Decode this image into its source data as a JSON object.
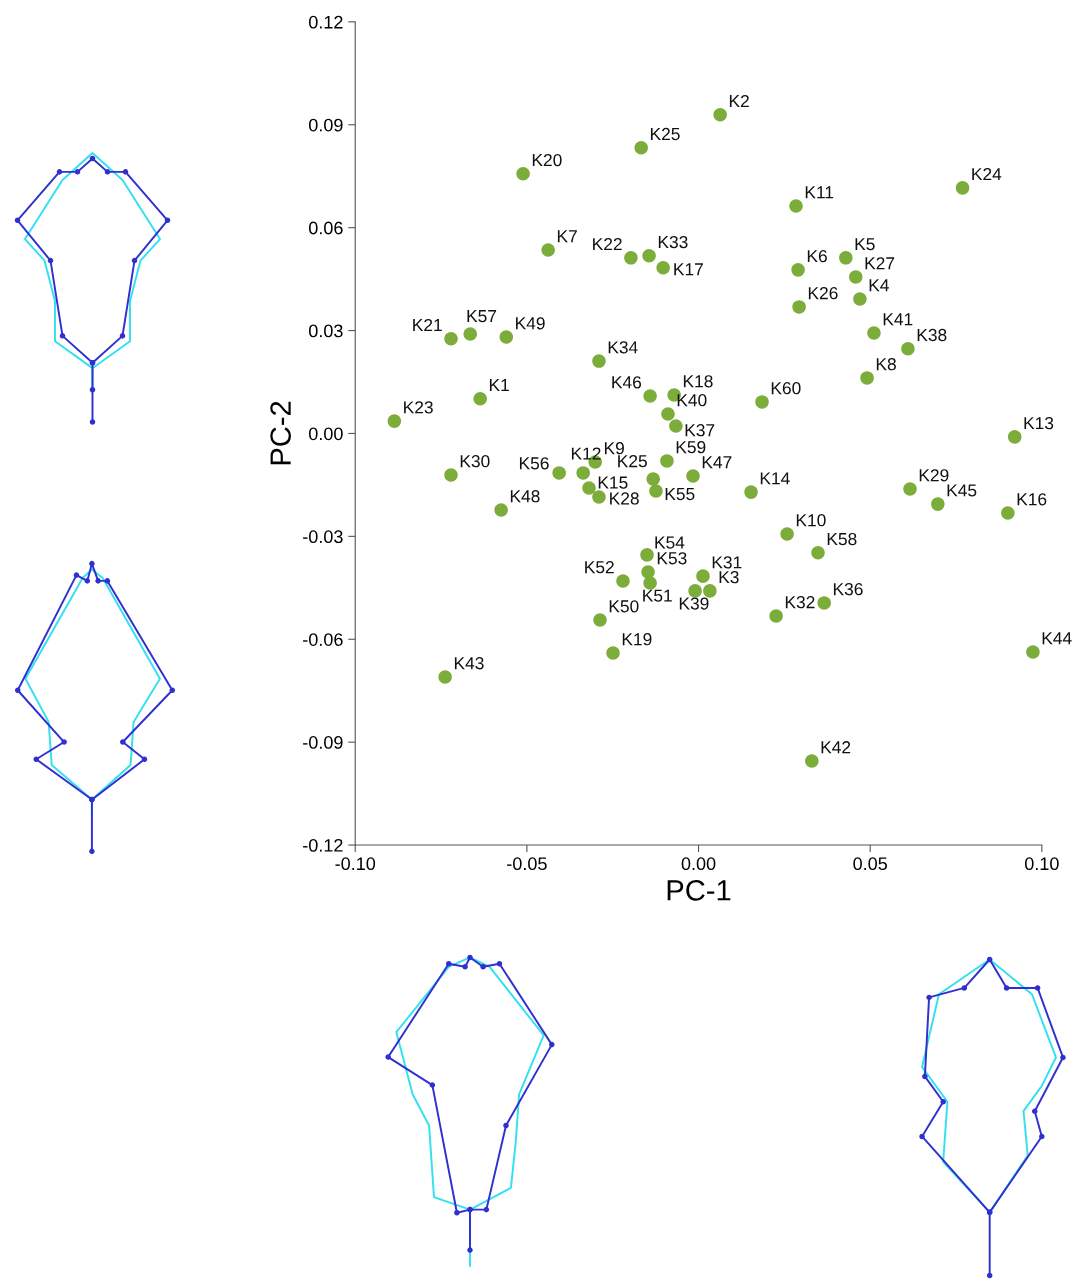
{
  "chart_data": {
    "type": "scatter",
    "xlabel": "PC-1",
    "ylabel": "PC-2",
    "xlim": [
      -0.1,
      0.1
    ],
    "xticks": [
      {
        "value": -0.1,
        "label": "-0.10"
      },
      {
        "value": -0.05,
        "label": "-0.05"
      },
      {
        "value": 0.0,
        "label": "0.00"
      },
      {
        "value": 0.05,
        "label": "0.05"
      },
      {
        "value": 0.1,
        "label": "0.10"
      }
    ],
    "ylim": [
      -0.12,
      0.12
    ],
    "yticks": [
      {
        "value": -0.12,
        "label": "-0.12"
      },
      {
        "value": -0.09,
        "label": "-0.09"
      },
      {
        "value": -0.06,
        "label": "-0.06"
      },
      {
        "value": -0.03,
        "label": "-0.03"
      },
      {
        "value": 0.0,
        "label": "0.00"
      },
      {
        "value": 0.03,
        "label": "0.03"
      },
      {
        "value": 0.06,
        "label": "0.06"
      },
      {
        "value": 0.09,
        "label": "0.09"
      },
      {
        "value": 0.12,
        "label": "0.12"
      }
    ],
    "grid": false,
    "legend": false,
    "marker": "circle",
    "series": [
      {
        "color": "#7cac3a",
        "x": [
          0.0063,
          -0.0167,
          -0.0511,
          0.0769,
          0.0284,
          -0.0438,
          -0.0197,
          -0.0144,
          -0.0103,
          0.029,
          0.0429,
          0.0458,
          0.047,
          0.0293,
          0.0511,
          0.061,
          0.0491,
          -0.0721,
          -0.0665,
          -0.056,
          -0.029,
          -0.0636,
          -0.0886,
          -0.0141,
          -0.0071,
          -0.0089,
          -0.0066,
          0.0185,
          0.0921,
          -0.0721,
          -0.0406,
          -0.0336,
          -0.0301,
          -0.0319,
          -0.029,
          -0.0132,
          -0.0124,
          -0.0092,
          -0.0016,
          0.0153,
          -0.0575,
          0.0616,
          0.0697,
          0.0901,
          0.0258,
          0.0348,
          -0.015,
          -0.0147,
          -0.022,
          -0.0141,
          0.0013,
          -0.001,
          0.0033,
          0.0226,
          0.0366,
          -0.0287,
          -0.0249,
          0.0974,
          -0.0738,
          0.033
        ],
        "values": [
          0.0929,
          0.0833,
          0.0757,
          0.0716,
          0.0663,
          0.0535,
          0.0512,
          0.0518,
          0.0483,
          0.0477,
          0.0512,
          0.0456,
          0.0392,
          0.0369,
          0.0293,
          0.0247,
          0.0162,
          0.0276,
          0.029,
          0.0281,
          0.0211,
          0.0101,
          0.0036,
          0.0109,
          0.0112,
          0.0057,
          0.0022,
          0.0092,
          -0.001,
          -0.0121,
          -0.0115,
          -0.0115,
          -0.0083,
          -0.0159,
          -0.0185,
          -0.0133,
          -0.0168,
          -0.008,
          -0.0124,
          -0.0171,
          -0.0223,
          -0.0162,
          -0.0206,
          -0.0232,
          -0.0293,
          -0.0348,
          -0.0354,
          -0.0404,
          -0.043,
          -0.0436,
          -0.0416,
          -0.0459,
          -0.0459,
          -0.0532,
          -0.0494,
          -0.0544,
          -0.064,
          -0.0637,
          -0.071,
          -0.0955
        ],
        "value_labels": [
          "K2",
          "K25",
          "K20",
          "K24",
          "K11",
          "K7",
          "K22",
          "K33",
          "K17",
          "K6",
          "K5",
          "K27",
          "K4",
          "K26",
          "K41",
          "K38",
          "K8",
          "K21",
          "K57",
          "K49",
          "K34",
          "K1",
          "K23",
          "K46",
          "K18",
          "K40",
          "K37",
          "K60",
          "K13",
          "K30",
          "K56",
          "K12",
          "K9",
          "K15",
          "K28",
          "K25",
          "K55",
          "K59",
          "K47",
          "K14",
          "K48",
          "K29",
          "K45",
          "K16",
          "K10",
          "K58",
          "K54",
          "K53",
          "K52",
          "K51",
          "K31",
          "K39",
          "K3",
          "K32",
          "K36",
          "K50",
          "K19",
          "K44",
          "K43",
          "K42"
        ]
      }
    ]
  }
}
